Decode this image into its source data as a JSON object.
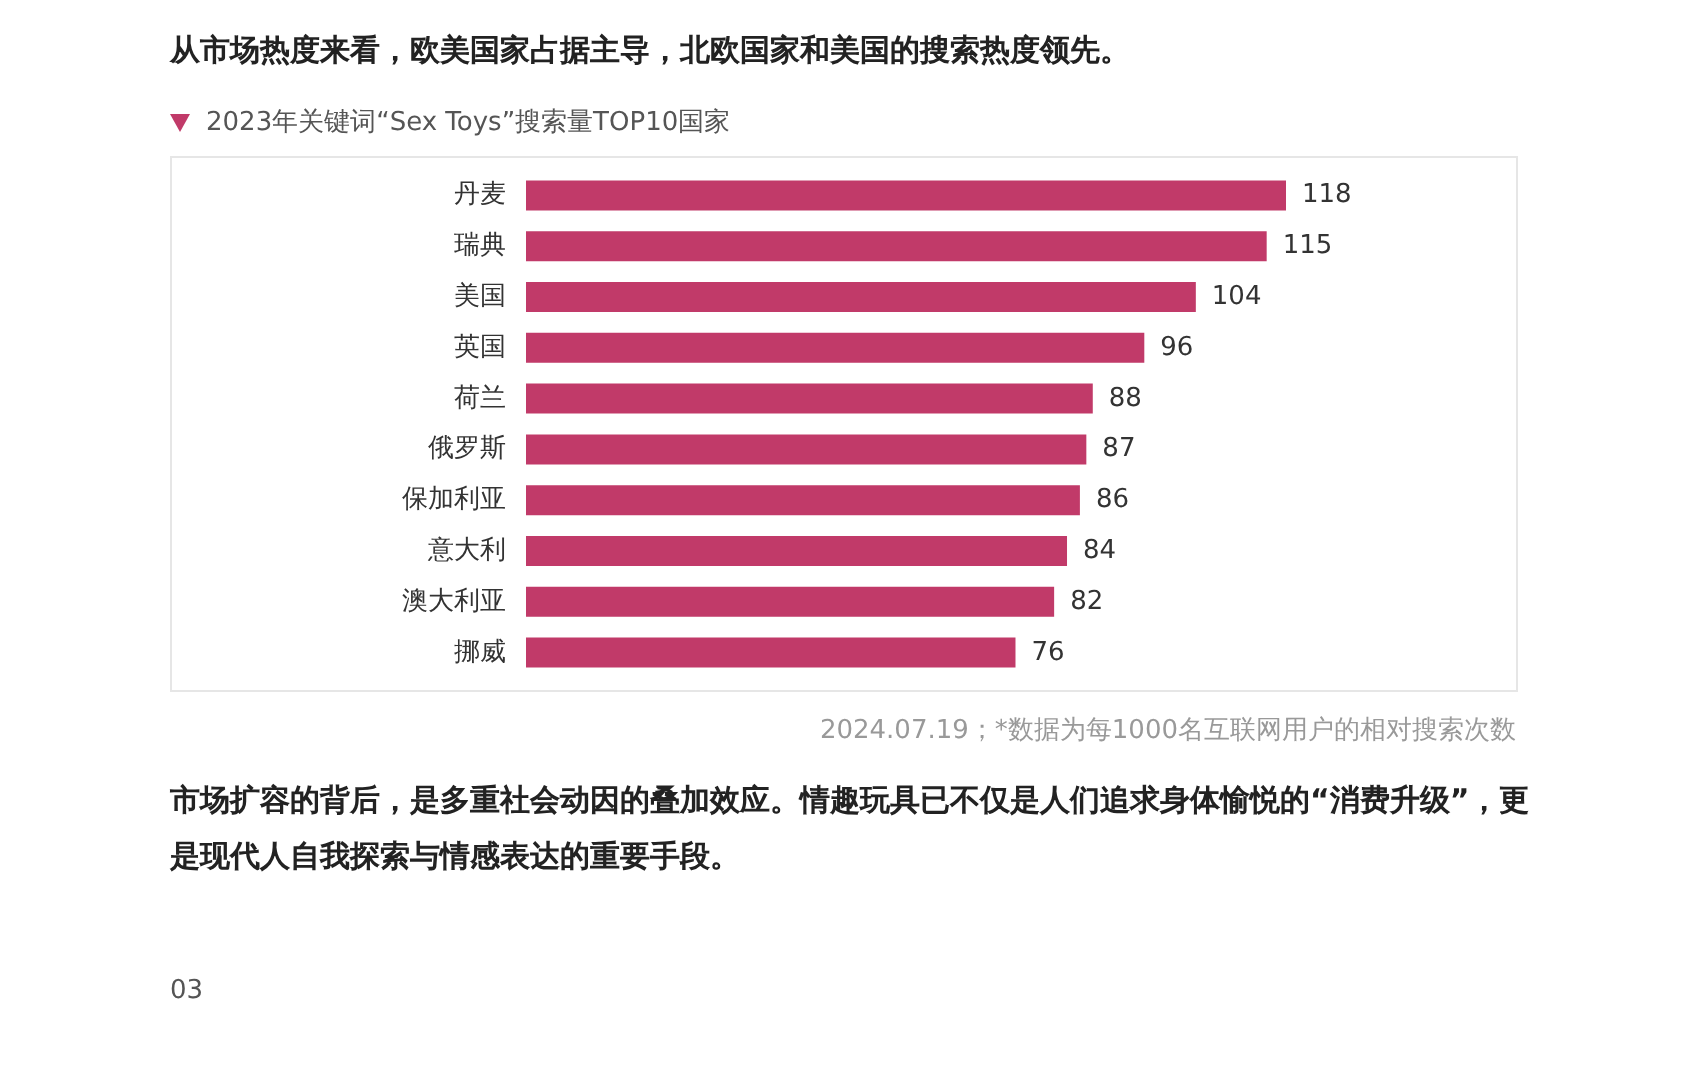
{
  "chart_data": {
    "type": "bar",
    "orientation": "horizontal",
    "title": "2023年关键词“Sex Toys”搜索量TOP10国家",
    "categories": [
      "丹麦",
      "瑞典",
      "美国",
      "英国",
      "荷兰",
      "俄罗斯",
      "保加利亚",
      "意大利",
      "澳大利亚",
      "挪威"
    ],
    "values": [
      118,
      115,
      104,
      96,
      88,
      87,
      86,
      84,
      82,
      76
    ],
    "color": "#c13a69",
    "data_labels": true,
    "tick_labels": "y",
    "annotations": [
      "从市场热度来看，欧美国家占据主导，北欧国家和美国的搜索热度领先。",
      "2024.07.19；*数据为每1000名互联网用户的相对搜索次数",
      "市场扩容的背后，是多重社会动因的叠加效应。情趣玩具已不仅是人们追求身体愉悦的“消费升级”，更是现代人自我探索与情感表达的重要手段。",
      "03"
    ]
  }
}
